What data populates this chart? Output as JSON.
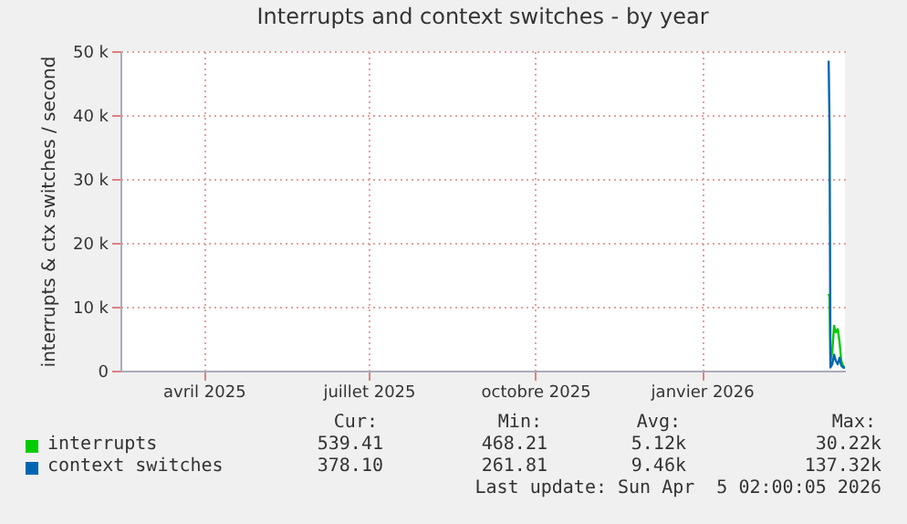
{
  "chart_data": {
    "type": "line",
    "title": "Interrupts and context switches - by year",
    "ylabel": "interrupts & ctx switches / second",
    "xlim": [
      "2025-03-01",
      "2026-04-05"
    ],
    "xticks": [
      {
        "value": "2025-04-16",
        "label": "avril 2025"
      },
      {
        "value": "2025-07-16",
        "label": "juillet 2025"
      },
      {
        "value": "2025-10-16",
        "label": "octobre 2025"
      },
      {
        "value": "2026-01-16",
        "label": "janvier 2026"
      }
    ],
    "ylim": [
      0,
      50000
    ],
    "yticks": [
      {
        "value": 0,
        "label": "0"
      },
      {
        "value": 10000,
        "label": "10 k"
      },
      {
        "value": 20000,
        "label": "20 k"
      },
      {
        "value": 30000,
        "label": "30 k"
      },
      {
        "value": 40000,
        "label": "40 k"
      },
      {
        "value": 50000,
        "label": "50 k"
      }
    ],
    "grid": true,
    "legend": "bottom",
    "marker": "none",
    "line_style": "solid",
    "series": [
      {
        "name": "interrupts",
        "color": "#00cc00",
        "x": [
          "2026-03-27T00:00",
          "2026-03-27T12:00",
          "2026-03-28",
          "2026-03-29",
          "2026-03-30",
          "2026-03-31",
          "2026-04-01",
          "2026-04-02",
          "2026-04-03",
          "2026-04-04",
          "2026-04-05"
        ],
        "values": [
          12000,
          11500,
          1500,
          3000,
          7000,
          6000,
          6500,
          4500,
          1500,
          700,
          500
        ]
      },
      {
        "name": "context switches",
        "color": "#0066b3",
        "x": [
          "2026-03-27T00:00",
          "2026-03-27T12:00",
          "2026-03-28",
          "2026-03-29",
          "2026-03-30",
          "2026-03-31",
          "2026-04-01",
          "2026-04-02",
          "2026-04-03",
          "2026-04-04",
          "2026-04-05"
        ],
        "values": [
          48500,
          38000,
          500,
          1000,
          2500,
          1500,
          1000,
          2000,
          800,
          500,
          400
        ]
      }
    ],
    "annotations": [
      "Cur:",
      "Min:",
      "Avg:",
      "Max:",
      "539.41",
      "468.21",
      "5.12k",
      "30.22k",
      "378.10",
      "261.81",
      "9.46k",
      "137.32k",
      "Last update: Sun Apr  5 02:00:05 2026"
    ]
  }
}
